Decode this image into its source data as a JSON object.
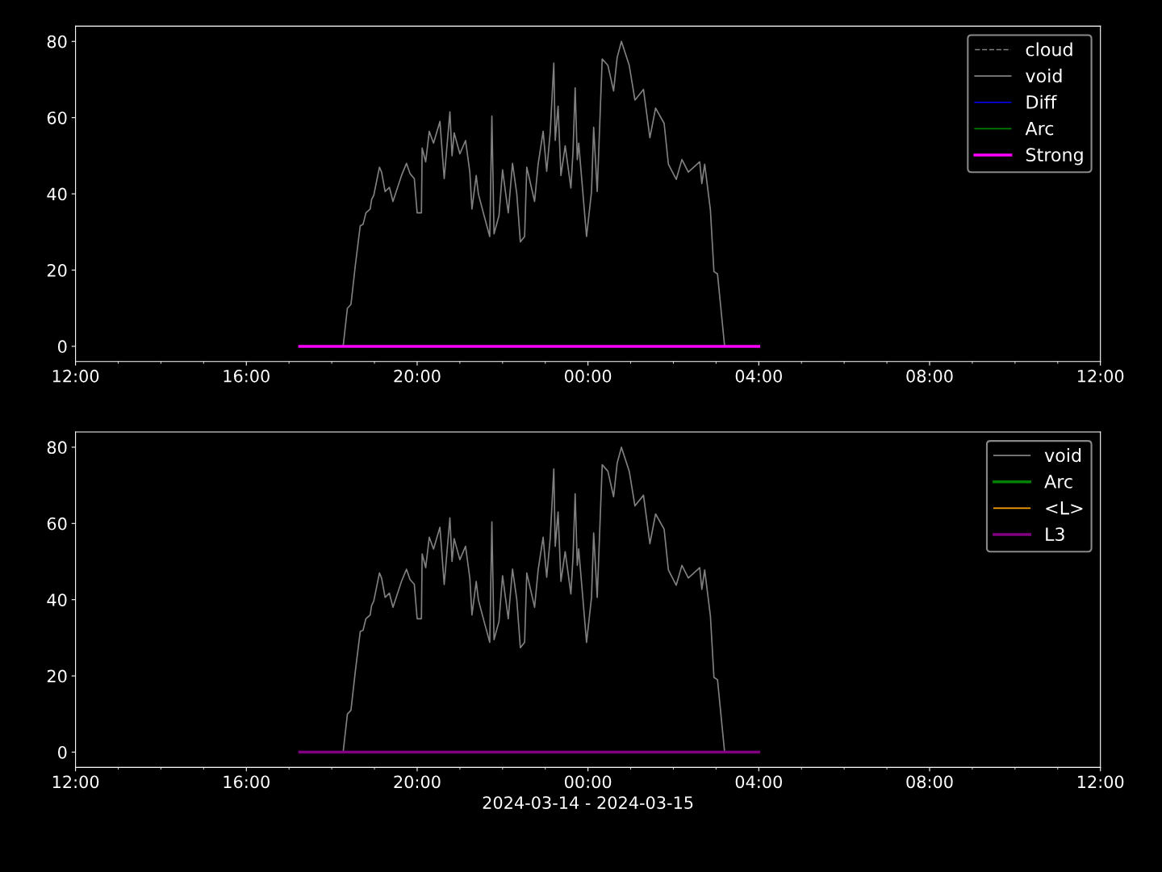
{
  "chart_data": [
    {
      "type": "line",
      "xlim": [
        "2024-03-14T12:00",
        "2024-03-15T12:00"
      ],
      "ylim": [
        -4,
        84
      ],
      "yticks": [
        0,
        20,
        40,
        60,
        80
      ],
      "xticks": [
        {
          "value": "2024-03-14T12:00",
          "label": "12:00"
        },
        {
          "value": "2024-03-14T16:00",
          "label": "16:00"
        },
        {
          "value": "2024-03-14T20:00",
          "label": "20:00"
        },
        {
          "value": "2024-03-15T00:00",
          "label": "00:00"
        },
        {
          "value": "2024-03-15T04:00",
          "label": "04:00"
        },
        {
          "value": "2024-03-15T08:00",
          "label": "08:00"
        },
        {
          "value": "2024-03-15T12:00",
          "label": "12:00"
        }
      ],
      "grid": false,
      "legend": "top right",
      "series": [
        {
          "name": "cloud",
          "color": "#808080",
          "line_style": "dashed"
        },
        {
          "name": "void",
          "color": "#808080",
          "x": [
            "2024-03-14T18:16",
            "2024-03-14T18:22",
            "2024-03-14T18:27",
            "2024-03-14T18:33",
            "2024-03-14T18:40",
            "2024-03-14T18:44",
            "2024-03-14T18:48",
            "2024-03-14T18:54",
            "2024-03-14T18:56",
            "2024-03-14T18:59",
            "2024-03-14T19:07",
            "2024-03-14T19:10",
            "2024-03-14T19:15",
            "2024-03-14T19:21",
            "2024-03-14T19:26",
            "2024-03-14T19:38",
            "2024-03-14T19:45",
            "2024-03-14T19:50",
            "2024-03-14T19:56",
            "2024-03-14T20:00",
            "2024-03-14T20:06",
            "2024-03-14T20:07",
            "2024-03-14T20:12",
            "2024-03-14T20:17",
            "2024-03-14T20:23",
            "2024-03-14T20:32",
            "2024-03-14T20:38",
            "2024-03-14T20:46",
            "2024-03-14T20:49",
            "2024-03-14T20:52",
            "2024-03-14T21:00",
            "2024-03-14T21:08",
            "2024-03-14T21:14",
            "2024-03-14T21:17",
            "2024-03-14T21:23",
            "2024-03-14T21:26",
            "2024-03-14T21:34",
            "2024-03-14T21:42",
            "2024-03-14T21:45",
            "2024-03-14T21:48",
            "2024-03-14T21:55",
            "2024-03-14T22:00",
            "2024-03-14T22:08",
            "2024-03-14T22:14",
            "2024-03-14T22:20",
            "2024-03-14T22:25",
            "2024-03-14T22:31",
            "2024-03-14T22:34",
            "2024-03-14T22:45",
            "2024-03-14T22:50",
            "2024-03-14T22:57",
            "2024-03-14T23:02",
            "2024-03-14T23:07",
            "2024-03-14T23:12",
            "2024-03-14T23:14",
            "2024-03-14T23:18",
            "2024-03-14T23:22",
            "2024-03-14T23:28",
            "2024-03-14T23:36",
            "2024-03-14T23:39",
            "2024-03-14T23:42",
            "2024-03-14T23:45",
            "2024-03-14T23:47",
            "2024-03-14T23:58",
            "2024-03-15T00:05",
            "2024-03-15T00:08",
            "2024-03-15T00:13",
            "2024-03-15T00:20",
            "2024-03-15T00:28",
            "2024-03-15T00:36",
            "2024-03-15T00:41",
            "2024-03-15T00:47",
            "2024-03-15T00:58",
            "2024-03-15T01:06",
            "2024-03-15T01:18",
            "2024-03-15T01:27",
            "2024-03-15T01:35",
            "2024-03-15T01:47",
            "2024-03-15T01:53",
            "2024-03-15T02:04",
            "2024-03-15T02:12",
            "2024-03-15T02:21",
            "2024-03-15T02:37",
            "2024-03-15T02:40",
            "2024-03-15T02:44",
            "2024-03-15T02:52",
            "2024-03-15T02:57",
            "2024-03-15T03:02",
            "2024-03-15T03:12"
          ],
          "values": [
            0,
            10,
            11,
            21,
            31.6,
            32,
            35,
            36,
            38.5,
            39.6,
            47,
            45.7,
            40.6,
            41.7,
            38,
            44.8,
            48,
            45.3,
            44,
            35,
            35,
            52,
            48.4,
            56.4,
            53.3,
            59,
            44,
            61.5,
            50,
            56,
            50.5,
            54,
            45.7,
            36,
            44.8,
            40,
            34.3,
            28.8,
            60.4,
            29.5,
            34.3,
            46.3,
            35,
            48,
            40,
            27.4,
            28.8,
            47,
            38,
            47.8,
            56.4,
            45.9,
            56.2,
            74.3,
            54,
            63,
            44.8,
            52.6,
            41.5,
            51.2,
            67.8,
            49,
            53.3,
            28.8,
            40.6,
            57.5,
            40.6,
            75.4,
            73.7,
            67,
            75.8,
            80,
            73.7,
            64.6,
            67.4,
            54.7,
            62.5,
            58.5,
            47.8,
            43.8,
            49,
            45.7,
            48.4,
            42.7,
            47.8,
            35.8,
            19.6,
            19,
            0
          ]
        },
        {
          "name": "Diff",
          "color": "#0000ff"
        },
        {
          "name": "Arc",
          "color": "#008000"
        },
        {
          "name": "Strong",
          "color": "#ff00ff",
          "x": [
            "2024-03-14T17:15",
            "2024-03-15T04:00"
          ],
          "values": [
            0,
            0
          ]
        }
      ]
    },
    {
      "type": "line",
      "xlim": [
        "2024-03-14T12:00",
        "2024-03-15T12:00"
      ],
      "ylim": [
        -4,
        84
      ],
      "yticks": [
        0,
        20,
        40,
        60,
        80
      ],
      "xticks": [
        {
          "value": "2024-03-14T12:00",
          "label": "12:00"
        },
        {
          "value": "2024-03-14T16:00",
          "label": "16:00"
        },
        {
          "value": "2024-03-14T20:00",
          "label": "20:00"
        },
        {
          "value": "2024-03-15T00:00",
          "label": "00:00"
        },
        {
          "value": "2024-03-15T04:00",
          "label": "04:00"
        },
        {
          "value": "2024-03-15T08:00",
          "label": "08:00"
        },
        {
          "value": "2024-03-15T12:00",
          "label": "12:00"
        }
      ],
      "xlabel": "2024-03-14 - 2024-03-15",
      "grid": false,
      "legend": "top right",
      "series": [
        {
          "name": "void",
          "color": "#808080",
          "x": [
            "2024-03-14T18:16",
            "2024-03-14T18:22",
            "2024-03-14T18:27",
            "2024-03-14T18:33",
            "2024-03-14T18:40",
            "2024-03-14T18:44",
            "2024-03-14T18:48",
            "2024-03-14T18:54",
            "2024-03-14T18:56",
            "2024-03-14T18:59",
            "2024-03-14T19:07",
            "2024-03-14T19:10",
            "2024-03-14T19:15",
            "2024-03-14T19:21",
            "2024-03-14T19:26",
            "2024-03-14T19:38",
            "2024-03-14T19:45",
            "2024-03-14T19:50",
            "2024-03-14T19:56",
            "2024-03-14T20:00",
            "2024-03-14T20:06",
            "2024-03-14T20:07",
            "2024-03-14T20:12",
            "2024-03-14T20:17",
            "2024-03-14T20:23",
            "2024-03-14T20:32",
            "2024-03-14T20:38",
            "2024-03-14T20:46",
            "2024-03-14T20:49",
            "2024-03-14T20:52",
            "2024-03-14T21:00",
            "2024-03-14T21:08",
            "2024-03-14T21:14",
            "2024-03-14T21:17",
            "2024-03-14T21:23",
            "2024-03-14T21:26",
            "2024-03-14T21:34",
            "2024-03-14T21:42",
            "2024-03-14T21:45",
            "2024-03-14T21:48",
            "2024-03-14T21:55",
            "2024-03-14T22:00",
            "2024-03-14T22:08",
            "2024-03-14T22:14",
            "2024-03-14T22:20",
            "2024-03-14T22:25",
            "2024-03-14T22:31",
            "2024-03-14T22:34",
            "2024-03-14T22:45",
            "2024-03-14T22:50",
            "2024-03-14T22:57",
            "2024-03-14T23:02",
            "2024-03-14T23:07",
            "2024-03-14T23:12",
            "2024-03-14T23:14",
            "2024-03-14T23:18",
            "2024-03-14T23:22",
            "2024-03-14T23:28",
            "2024-03-14T23:36",
            "2024-03-14T23:39",
            "2024-03-14T23:42",
            "2024-03-14T23:45",
            "2024-03-14T23:47",
            "2024-03-14T23:58",
            "2024-03-15T00:05",
            "2024-03-15T00:08",
            "2024-03-15T00:13",
            "2024-03-15T00:20",
            "2024-03-15T00:28",
            "2024-03-15T00:36",
            "2024-03-15T00:41",
            "2024-03-15T00:47",
            "2024-03-15T00:58",
            "2024-03-15T01:06",
            "2024-03-15T01:18",
            "2024-03-15T01:27",
            "2024-03-15T01:35",
            "2024-03-15T01:47",
            "2024-03-15T01:53",
            "2024-03-15T02:04",
            "2024-03-15T02:12",
            "2024-03-15T02:21",
            "2024-03-15T02:37",
            "2024-03-15T02:40",
            "2024-03-15T02:44",
            "2024-03-15T02:52",
            "2024-03-15T02:57",
            "2024-03-15T03:02",
            "2024-03-15T03:12"
          ],
          "values": [
            0,
            10,
            11,
            21,
            31.6,
            32,
            35,
            36,
            38.5,
            39.6,
            47,
            45.7,
            40.6,
            41.7,
            38,
            44.8,
            48,
            45.3,
            44,
            35,
            35,
            52,
            48.4,
            56.4,
            53.3,
            59,
            44,
            61.5,
            50,
            56,
            50.5,
            54,
            45.7,
            36,
            44.8,
            40,
            34.3,
            28.8,
            60.4,
            29.5,
            34.3,
            46.3,
            35,
            48,
            40,
            27.4,
            28.8,
            47,
            38,
            47.8,
            56.4,
            45.9,
            56.2,
            74.3,
            54,
            63,
            44.8,
            52.6,
            41.5,
            51.2,
            67.8,
            49,
            53.3,
            28.8,
            40.6,
            57.5,
            40.6,
            75.4,
            73.7,
            67,
            75.8,
            80,
            73.7,
            64.6,
            67.4,
            54.7,
            62.5,
            58.5,
            47.8,
            43.8,
            49,
            45.7,
            48.4,
            42.7,
            47.8,
            35.8,
            19.6,
            19,
            0
          ]
        },
        {
          "name": "Arc",
          "color": "#008000"
        },
        {
          "name": "<L>",
          "color": "#ffa500"
        },
        {
          "name": "L3",
          "color": "#800080",
          "x": [
            "2024-03-14T17:15",
            "2024-03-15T04:00"
          ],
          "values": [
            0,
            0
          ]
        }
      ]
    }
  ]
}
